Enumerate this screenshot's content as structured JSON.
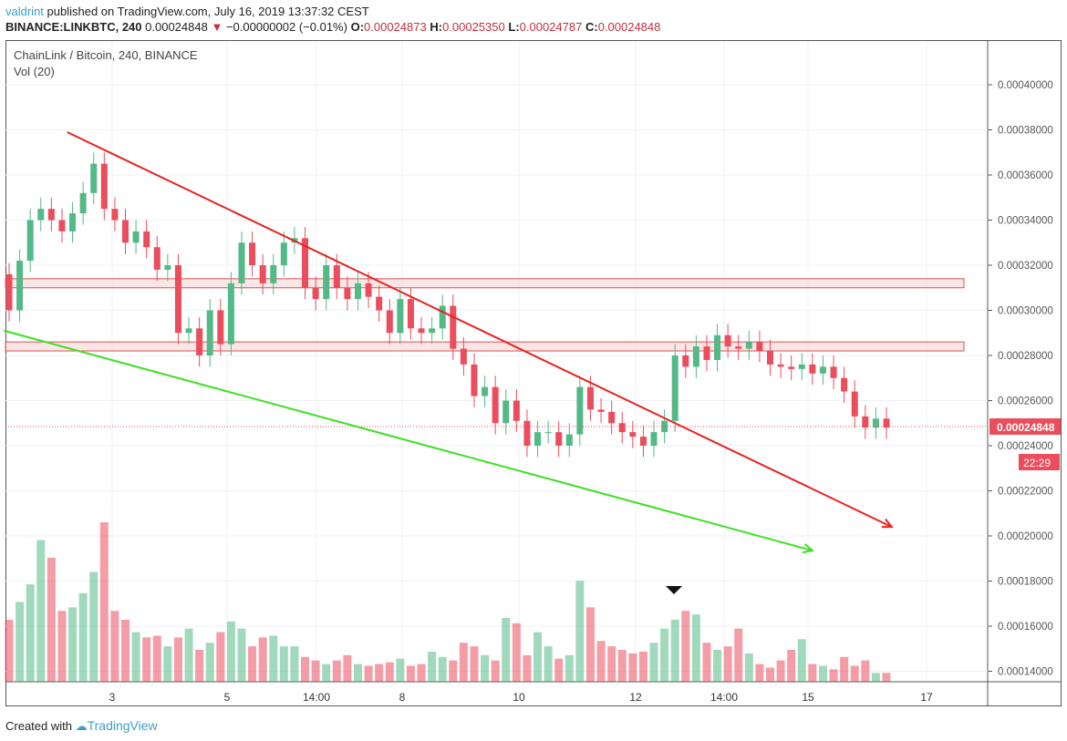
{
  "header": {
    "user": "valdrint",
    "published": " published on TradingView.com, July 16, 2019 13:37:32 CEST",
    "symbol": "BINANCE:LINKBTC, 240",
    "last": "0.00024848",
    "change": "−0.00000002 (−0.01%)",
    "o_label": "O:",
    "o": "0.00024873",
    "h_label": "H:",
    "h": "0.00025350",
    "l_label": "L:",
    "l": "0.00024787",
    "c_label": "C:",
    "c": "0.00024848"
  },
  "chart_title": "ChainLink / Bitcoin, 240, BINANCE",
  "indicator": "Vol (20)",
  "footer": {
    "created": "Created with",
    "brand": "TradingView"
  },
  "colors": {
    "up": "#53b987",
    "down": "#eb4d5c",
    "trend_red": "#e8221f",
    "trend_green": "#3ee024",
    "zone": "#f7d6d6"
  },
  "chart_data": {
    "type": "candlestick",
    "interval": "240",
    "ylim": [
      0.000137,
      0.000408
    ],
    "y_ticks": [
      "0.00040000",
      "0.00038000",
      "0.00036000",
      "0.00034000",
      "0.00032000",
      "0.00030000",
      "0.00028000",
      "0.00026000",
      "0.00024000",
      "0.00022000",
      "0.00020000",
      "0.00018000",
      "0.00016000",
      "0.00014000"
    ],
    "x_ticks": [
      "3",
      "5",
      "14:00",
      "8",
      "10",
      "12",
      "14:00",
      "15",
      "17"
    ],
    "current_price_label": "0.00024848",
    "current_price": 0.00024848,
    "countdown": "22:29",
    "first_open": 0.000316,
    "closes": [
      0.0003,
      0.000322,
      0.00034,
      0.000345,
      0.00034,
      0.000335,
      0.000343,
      0.000352,
      0.000365,
      0.000345,
      0.00034,
      0.00033,
      0.000335,
      0.000328,
      0.000318,
      0.00032,
      0.00029,
      0.000292,
      0.00028,
      0.0003,
      0.000285,
      0.000312,
      0.00033,
      0.00032,
      0.000312,
      0.00032,
      0.00033,
      0.000332,
      0.00031,
      0.000305,
      0.00032,
      0.00031,
      0.000305,
      0.000312,
      0.000306,
      0.0003,
      0.00029,
      0.000305,
      0.000292,
      0.00029,
      0.000292,
      0.000302,
      0.000283,
      0.000276,
      0.000262,
      0.000266,
      0.00025,
      0.00026,
      0.000251,
      0.00024,
      0.000246,
      0.000246,
      0.00024,
      0.000245,
      0.000266,
      0.000256,
      0.000255,
      0.00025,
      0.000246,
      0.000244,
      0.00024,
      0.000246,
      0.000251,
      0.00028,
      0.000275,
      0.000284,
      0.000278,
      0.000289,
      0.000284,
      0.000283,
      0.000286,
      0.000282,
      0.000276,
      0.000275,
      0.000274,
      0.000276,
      0.000272,
      0.000275,
      0.00027,
      0.000264,
      0.000253,
      0.000248,
      0.000252,
      0.000248
    ],
    "volumes": [
      35,
      45,
      55,
      80,
      70,
      40,
      42,
      50,
      62,
      90,
      40,
      35,
      28,
      25,
      26,
      20,
      25,
      30,
      18,
      22,
      28,
      34,
      30,
      20,
      25,
      26,
      20,
      20,
      14,
      12,
      10,
      12,
      15,
      10,
      9,
      10,
      11,
      13,
      9,
      10,
      17,
      14,
      12,
      22,
      20,
      15,
      12,
      36,
      33,
      15,
      28,
      20,
      13,
      15,
      57,
      42,
      23,
      20,
      18,
      16,
      17,
      22,
      30,
      35,
      40,
      38,
      22,
      18,
      20,
      30,
      16,
      10,
      8,
      12,
      18,
      24,
      10,
      9,
      7,
      14,
      9,
      12,
      5,
      5
    ],
    "zones": [
      [
        0.00031,
        0.000314
      ],
      [
        0.000282,
        0.000286
      ]
    ],
    "trendlines": [
      {
        "color": "red",
        "from": [
          5.5,
          0.000379
        ],
        "to": [
          83.5,
          0.000204
        ],
        "arrow": true
      },
      {
        "color": "green",
        "from": [
          -0.5,
          0.000291
        ],
        "to": [
          76,
          0.0001935
        ],
        "arrow": true
      }
    ],
    "marker": "volume-peak"
  }
}
